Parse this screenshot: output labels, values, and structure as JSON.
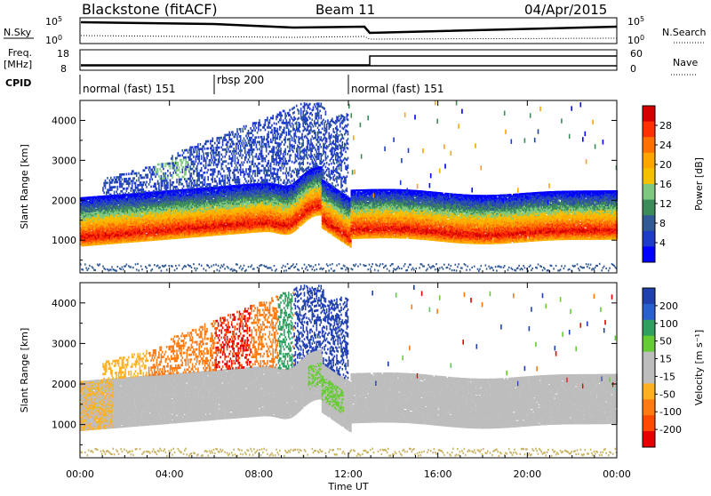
{
  "header": {
    "station": "Blackstone (fitACF)",
    "beam": "Beam 11",
    "date": "04/Apr/2015"
  },
  "top_panels": {
    "nsky": {
      "label": "N.Sky",
      "ticks": [
        "10^5",
        "10^0"
      ],
      "right_ticks": [
        "10^5",
        "10^0"
      ],
      "right_label": "N.Search"
    },
    "freq": {
      "label_line1": "Freq.",
      "label_line2": "[MHz]",
      "left_ticks": [
        "18",
        "8"
      ],
      "right_ticks": [
        "60",
        "0"
      ],
      "right_label": "Nave"
    },
    "cpid": {
      "label": "CPID",
      "segments": [
        {
          "name": "normal (fast) 151",
          "start_h": 0,
          "end_h": 6
        },
        {
          "name": "rbsp 200",
          "start_h": 6,
          "end_h": 12
        },
        {
          "name": "normal (fast) 151",
          "start_h": 12,
          "end_h": 24
        }
      ]
    }
  },
  "chart_data": [
    {
      "type": "heatmap",
      "title": "",
      "ylabel": "Slant Range [km]",
      "y_ticks": [
        1000,
        2000,
        3000,
        4000
      ],
      "xlabel": "Time UT",
      "x_ticks": [
        "00:00",
        "04:00",
        "08:00",
        "12:00",
        "16:00",
        "20:00",
        "00:00"
      ],
      "xlim_hours": [
        0,
        24
      ],
      "ylim_km": [
        180,
        4500
      ],
      "colorbar": {
        "label": "Power [dB]",
        "ticks": [
          "28",
          "24",
          "20",
          "16",
          "12",
          "8",
          "4"
        ],
        "colors": [
          "#d40000",
          "#ff3000",
          "#ff7000",
          "#ffa500",
          "#f5c000",
          "#7fc87f",
          "#3c8c5a",
          "#325a96",
          "#1e3cc8",
          "#0000ff"
        ]
      }
    },
    {
      "type": "heatmap",
      "title": "",
      "ylabel": "Slant Range [km]",
      "y_ticks": [
        1000,
        2000,
        3000,
        4000
      ],
      "xlabel": "Time UT",
      "x_ticks": [
        "00:00",
        "04:00",
        "08:00",
        "12:00",
        "16:00",
        "20:00",
        "00:00"
      ],
      "xlim_hours": [
        0,
        24
      ],
      "ylim_km": [
        180,
        4500
      ],
      "colorbar": {
        "label": "Velocity [m s⁻¹]",
        "ticks": [
          "200",
          "100",
          "50",
          "15",
          "-15",
          "-50",
          "-100",
          "-200"
        ],
        "colors": [
          "#2040b0",
          "#2860d0",
          "#30a060",
          "#66cc33",
          "#bdbdbd",
          "#bdbdbd",
          "#ffb020",
          "#ff7a10",
          "#ff4a00",
          "#e60000"
        ]
      }
    }
  ]
}
